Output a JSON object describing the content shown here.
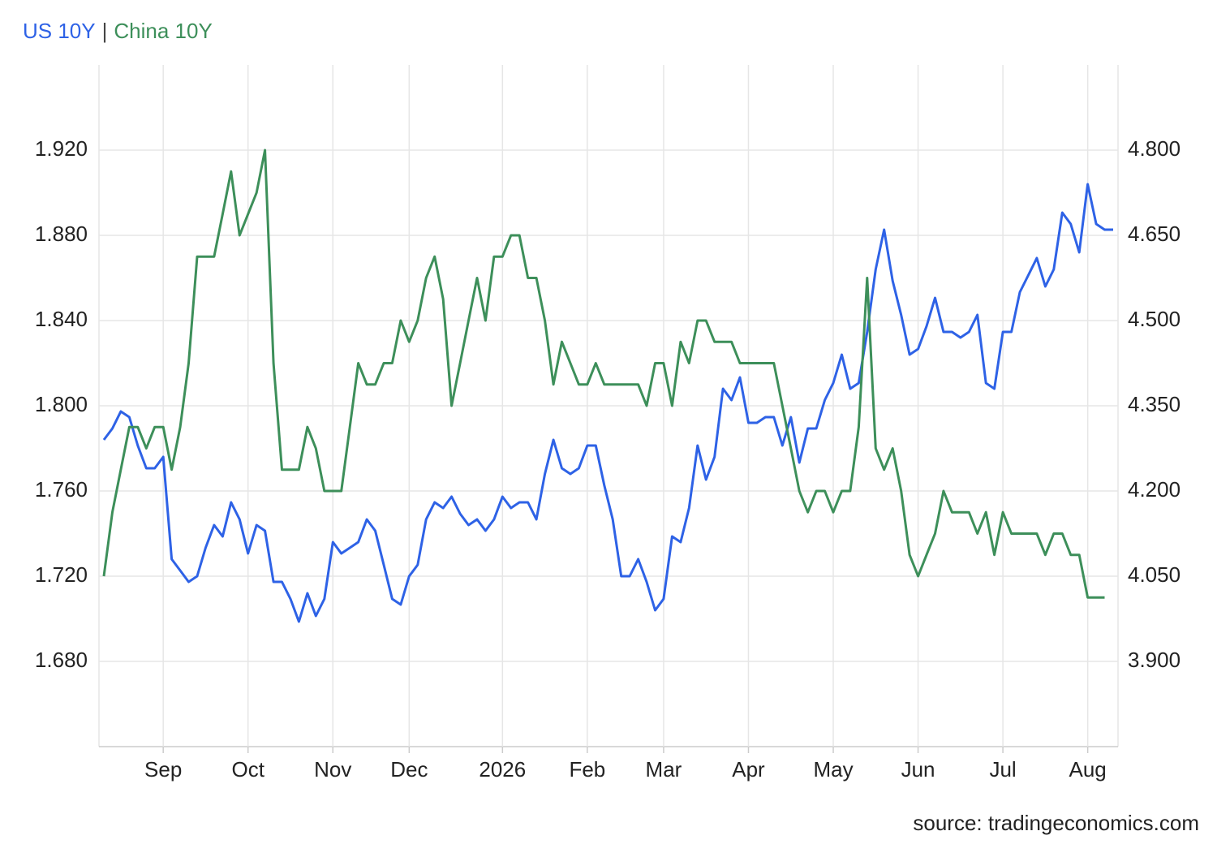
{
  "chart_data": {
    "type": "line",
    "title_separator": "|",
    "source": "source: tradingeconomics.com",
    "categories": [
      null,
      null,
      null,
      null,
      null,
      null,
      null,
      "Sep",
      null,
      null,
      null,
      null,
      null,
      null,
      null,
      null,
      null,
      "Oct",
      null,
      null,
      null,
      null,
      null,
      null,
      null,
      null,
      null,
      "Nov",
      null,
      null,
      null,
      null,
      null,
      null,
      null,
      null,
      "Dec",
      null,
      null,
      null,
      null,
      null,
      null,
      null,
      null,
      null,
      null,
      "2026",
      null,
      null,
      null,
      null,
      null,
      null,
      null,
      null,
      null,
      "Feb",
      null,
      null,
      null,
      null,
      null,
      null,
      null,
      null,
      "Mar",
      null,
      null,
      null,
      null,
      null,
      null,
      null,
      null,
      null,
      "Apr",
      null,
      null,
      null,
      null,
      null,
      null,
      null,
      null,
      null,
      "May",
      null,
      null,
      null,
      null,
      null,
      null,
      null,
      null,
      null,
      "Jun",
      null,
      null,
      null,
      null,
      null,
      null,
      null,
      null,
      null,
      "Jul",
      null,
      null,
      null,
      null,
      null,
      null,
      null,
      null,
      null,
      "Aug",
      null,
      null,
      null
    ],
    "series": [
      {
        "name": "US 10Y",
        "color": "#2e62e6",
        "axis": "y2",
        "values": [
          4.29,
          4.31,
          4.34,
          4.33,
          4.28,
          4.24,
          4.24,
          4.26,
          4.08,
          4.06,
          4.04,
          4.05,
          4.1,
          4.14,
          4.12,
          4.18,
          4.15,
          4.09,
          4.14,
          4.13,
          4.04,
          4.04,
          4.01,
          3.97,
          4.02,
          3.98,
          4.01,
          4.11,
          4.09,
          4.1,
          4.11,
          4.15,
          4.13,
          4.07,
          4.01,
          4.0,
          4.05,
          4.07,
          4.15,
          4.18,
          4.17,
          4.19,
          4.16,
          4.14,
          4.15,
          4.13,
          4.15,
          4.19,
          4.17,
          4.18,
          4.18,
          4.15,
          4.23,
          4.29,
          4.24,
          4.23,
          4.24,
          4.28,
          4.28,
          4.21,
          4.15,
          4.05,
          4.05,
          4.08,
          4.04,
          3.99,
          4.01,
          4.12,
          4.11,
          4.17,
          4.28,
          4.22,
          4.26,
          4.38,
          4.36,
          4.4,
          4.32,
          4.32,
          4.33,
          4.33,
          4.28,
          4.33,
          4.25,
          4.31,
          4.31,
          4.36,
          4.39,
          4.44,
          4.38,
          4.39,
          4.48,
          4.59,
          4.66,
          4.57,
          4.51,
          4.44,
          4.45,
          4.49,
          4.54,
          4.48,
          4.48,
          4.47,
          4.48,
          4.51,
          4.39,
          4.38,
          4.48,
          4.48,
          4.55,
          4.58,
          4.61,
          4.56,
          4.59,
          4.69,
          4.67,
          4.62,
          4.74,
          4.67,
          4.66,
          4.66
        ]
      },
      {
        "name": "China 10Y",
        "color": "#3d8f5a",
        "axis": "y",
        "values": [
          1.72,
          1.75,
          1.77,
          1.79,
          1.79,
          1.78,
          1.79,
          1.79,
          1.77,
          1.79,
          1.82,
          1.87,
          1.87,
          1.87,
          1.89,
          1.91,
          1.88,
          1.89,
          1.9,
          1.92,
          1.82,
          1.77,
          1.77,
          1.77,
          1.79,
          1.78,
          1.76,
          1.76,
          1.76,
          1.79,
          1.82,
          1.81,
          1.81,
          1.82,
          1.82,
          1.84,
          1.83,
          1.84,
          1.86,
          1.87,
          1.85,
          1.8,
          1.82,
          1.84,
          1.86,
          1.84,
          1.87,
          1.87,
          1.88,
          1.88,
          1.86,
          1.86,
          1.84,
          1.81,
          1.83,
          1.82,
          1.81,
          1.81,
          1.82,
          1.81,
          1.81,
          1.81,
          1.81,
          1.81,
          1.8,
          1.82,
          1.82,
          1.8,
          1.83,
          1.82,
          1.84,
          1.84,
          1.83,
          1.83,
          1.83,
          1.82,
          1.82,
          1.82,
          1.82,
          1.82,
          1.8,
          1.78,
          1.76,
          1.75,
          1.76,
          1.76,
          1.75,
          1.76,
          1.76,
          1.79,
          1.86,
          1.78,
          1.77,
          1.78,
          1.76,
          1.73,
          1.72,
          1.73,
          1.74,
          1.76,
          1.75,
          1.75,
          1.75,
          1.74,
          1.75,
          1.73,
          1.75,
          1.74,
          1.74,
          1.74,
          1.74,
          1.73,
          1.74,
          1.74,
          1.73,
          1.73,
          1.71,
          1.71,
          1.71,
          null
        ]
      }
    ],
    "ylim": [
      1.64,
      1.96
    ],
    "yticks": [
      {
        "value": 1.68,
        "label": "1.680"
      },
      {
        "value": 1.72,
        "label": "1.720"
      },
      {
        "value": 1.76,
        "label": "1.760"
      },
      {
        "value": 1.8,
        "label": "1.800"
      },
      {
        "value": 1.84,
        "label": "1.840"
      },
      {
        "value": 1.88,
        "label": "1.880"
      },
      {
        "value": 1.92,
        "label": "1.920"
      }
    ],
    "y2lim": [
      3.75,
      4.95
    ],
    "y2ticks": [
      {
        "value": 3.9,
        "label": "3.900"
      },
      {
        "value": 4.05,
        "label": "4.050"
      },
      {
        "value": 4.2,
        "label": "4.200"
      },
      {
        "value": 4.35,
        "label": "4.350"
      },
      {
        "value": 4.5,
        "label": "4.500"
      },
      {
        "value": 4.65,
        "label": "4.650"
      },
      {
        "value": 4.8,
        "label": "4.800"
      }
    ],
    "grid": true
  }
}
